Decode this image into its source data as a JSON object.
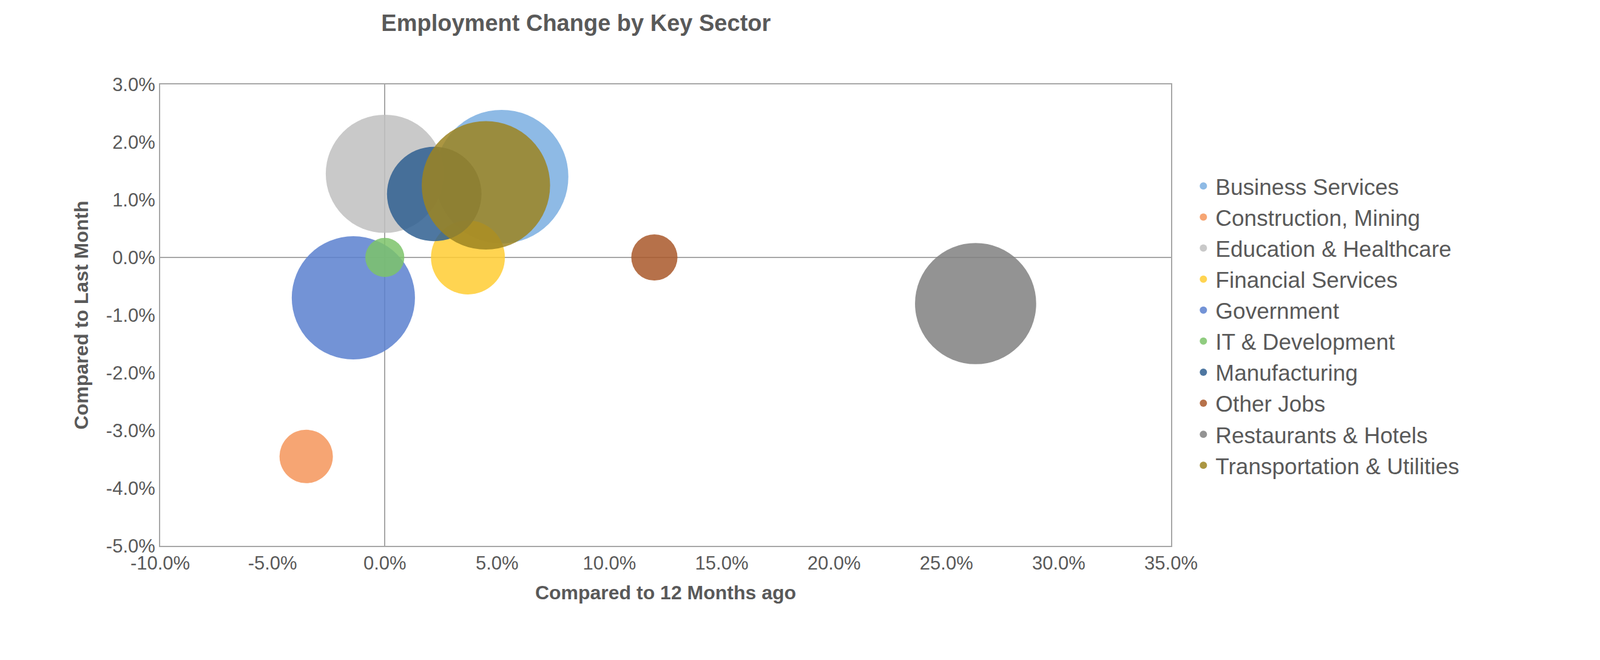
{
  "chart_data": {
    "type": "bubble",
    "title": "Employment Change by Key Sector",
    "x_label": "Compared to 12 Months ago",
    "y_label": "Compared to Last Month",
    "xlim": [
      -10,
      35
    ],
    "ylim": [
      -5,
      3
    ],
    "xticks": [
      {
        "value": -10,
        "label": "-10.0%"
      },
      {
        "value": -5,
        "label": "-5.0%"
      },
      {
        "value": 0,
        "label": "0.0%"
      },
      {
        "value": 5,
        "label": "5.0%"
      },
      {
        "value": 10,
        "label": "10.0%"
      },
      {
        "value": 15,
        "label": "15.0%"
      },
      {
        "value": 20,
        "label": "20.0%"
      },
      {
        "value": 25,
        "label": "25.0%"
      },
      {
        "value": 30,
        "label": "30.0%"
      },
      {
        "value": 35,
        "label": "35.0%"
      }
    ],
    "yticks": [
      {
        "value": -5,
        "label": "-5.0%"
      },
      {
        "value": -4,
        "label": "-4.0%"
      },
      {
        "value": -3,
        "label": "-3.0%"
      },
      {
        "value": -2,
        "label": "-2.0%"
      },
      {
        "value": -1,
        "label": "-1.0%"
      },
      {
        "value": 0,
        "label": "0.0%"
      },
      {
        "value": 1,
        "label": "1.0%"
      },
      {
        "value": 2,
        "label": "2.0%"
      },
      {
        "value": 3,
        "label": "3.0%"
      }
    ],
    "grid": false,
    "legend": "right",
    "series": [
      {
        "name": "Business Services",
        "color": "#7aaee0",
        "x": [
          5.2
        ],
        "values": [
          1.4
        ],
        "sizes": [
          130
        ]
      },
      {
        "name": "Construction, Mining",
        "color": "#f4955a",
        "x": [
          -3.5
        ],
        "values": [
          -3.45
        ],
        "sizes": [
          52
        ]
      },
      {
        "name": "Education & Healthcare",
        "color": "#bfbfbf",
        "x": [
          0
        ],
        "values": [
          1.45
        ],
        "sizes": [
          115
        ]
      },
      {
        "name": "Financial Services",
        "color": "#ffcc33",
        "x": [
          3.7
        ],
        "values": [
          0.0
        ],
        "sizes": [
          72
        ]
      },
      {
        "name": "Government",
        "color": "#5b80cf",
        "x": [
          -1.4
        ],
        "values": [
          -0.7
        ],
        "sizes": [
          120
        ]
      },
      {
        "name": "IT & Development",
        "color": "#7dc36a",
        "x": [
          0
        ],
        "values": [
          0.0
        ],
        "sizes": [
          38
        ]
      },
      {
        "name": "Manufacturing",
        "color": "#2f5f91",
        "x": [
          2.2
        ],
        "values": [
          1.1
        ],
        "sizes": [
          92
        ]
      },
      {
        "name": "Other Jobs",
        "color": "#a9582a",
        "x": [
          12
        ],
        "values": [
          0.0
        ],
        "sizes": [
          45
        ]
      },
      {
        "name": "Restaurants & Hotels",
        "color": "#808080",
        "x": [
          26.3
        ],
        "values": [
          -0.8
        ],
        "sizes": [
          118
        ]
      },
      {
        "name": "Transportation & Utilities",
        "color": "#9c8421",
        "x": [
          4.5
        ],
        "values": [
          1.25
        ],
        "sizes": [
          125
        ]
      }
    ]
  }
}
